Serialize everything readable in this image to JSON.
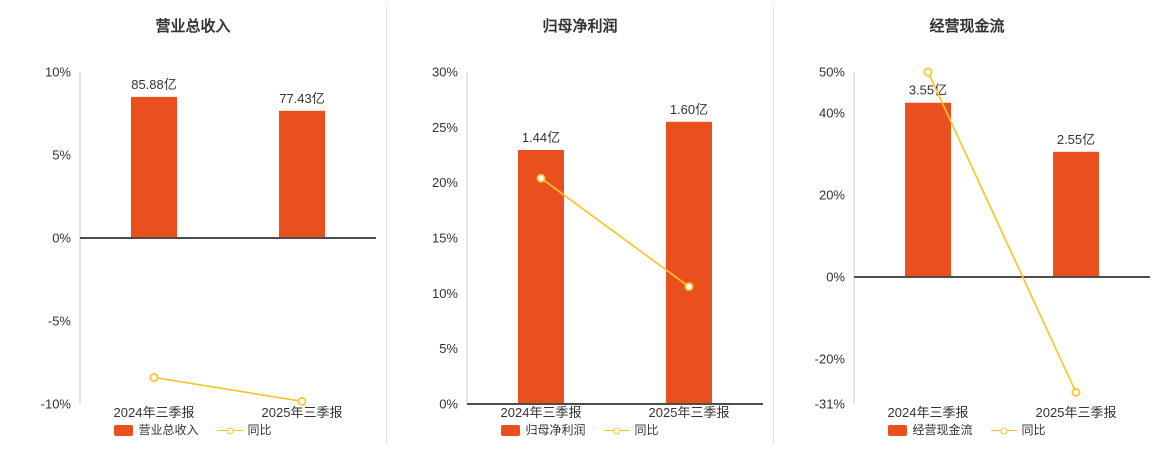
{
  "page": {
    "background": "#ffffff"
  },
  "colors": {
    "bar": "#ea4f1e",
    "yoy_line": "#fdc42d",
    "axis_zero_line": "#4d4d4d",
    "axis_light": "#cccccc",
    "text": "#333333",
    "divider": "#e0e0e0"
  },
  "layout": {
    "legend_position": "bottom",
    "grid": false,
    "bar_max_fraction_of_ymax": 0.85
  },
  "chart_data": [
    {
      "type": "bar+line",
      "title": "营业总收入",
      "categories": [
        "2024年三季报",
        "2025年三季报"
      ],
      "bars": {
        "name": "营业总收入",
        "unit": "亿",
        "values": [
          85.88,
          77.43
        ],
        "labels": [
          "85.88亿",
          "77.43亿"
        ]
      },
      "line": {
        "name": "同比",
        "unit": "%",
        "values": [
          -8.4,
          -9.84
        ]
      },
      "ylim": [
        -10,
        10
      ],
      "yticks": [
        10,
        5,
        0,
        -5,
        -10
      ],
      "ytick_format": "percent"
    },
    {
      "type": "bar+line",
      "title": "归母净利润",
      "categories": [
        "2024年三季报",
        "2025年三季报"
      ],
      "bars": {
        "name": "归母净利润",
        "unit": "亿",
        "values": [
          1.44,
          1.6
        ],
        "labels": [
          "1.44亿",
          "1.60亿"
        ]
      },
      "line": {
        "name": "同比",
        "unit": "%",
        "values": [
          20.4,
          10.6
        ]
      },
      "ylim": [
        0,
        30
      ],
      "yticks": [
        30,
        25,
        20,
        15,
        10,
        5,
        0
      ],
      "ytick_format": "percent"
    },
    {
      "type": "bar+line",
      "title": "经营现金流",
      "categories": [
        "2024年三季报",
        "2025年三季报"
      ],
      "bars": {
        "name": "经营现金流",
        "unit": "亿",
        "values": [
          3.55,
          2.55
        ],
        "labels": [
          "3.55亿",
          "2.55亿"
        ]
      },
      "line": {
        "name": "同比",
        "unit": "%",
        "values": [
          50.0,
          -28.17
        ]
      },
      "ylim": [
        -31,
        50
      ],
      "yticks": [
        50,
        40,
        20,
        0,
        -20,
        -31
      ],
      "ytick_format": "percent"
    }
  ]
}
